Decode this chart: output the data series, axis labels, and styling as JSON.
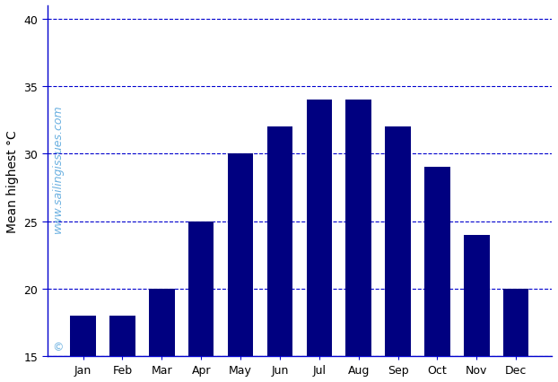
{
  "months": [
    "Jan",
    "Feb",
    "Mar",
    "Apr",
    "May",
    "Jun",
    "Jul",
    "Aug",
    "Sep",
    "Oct",
    "Nov",
    "Dec"
  ],
  "values": [
    18,
    18,
    20,
    25,
    30,
    32,
    34,
    34,
    32,
    29,
    24,
    20
  ],
  "bar_color": "#000080",
  "ylabel": "Mean highest °C",
  "ylim": [
    15,
    41
  ],
  "yticks": [
    15,
    20,
    25,
    30,
    35,
    40
  ],
  "grid_color": "#0000cd",
  "watermark_text": "www.sailingissues.com",
  "watermark_color": "#6ab0e0",
  "copyright_text": "©",
  "background_color": "#ffffff",
  "spine_color": "#0000cd",
  "tick_label_fontsize": 9,
  "ylabel_fontsize": 10,
  "bar_width": 0.65
}
